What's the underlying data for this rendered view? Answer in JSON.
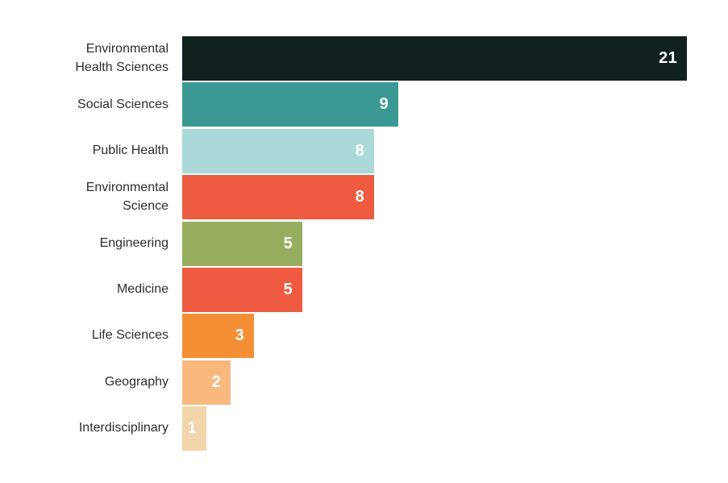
{
  "chart_data": {
    "type": "bar",
    "orientation": "horizontal",
    "title": "",
    "xlabel": "",
    "ylabel": "",
    "xlim": [
      0,
      21
    ],
    "grid": false,
    "legend": false,
    "value_label_color": "#ffffff",
    "label_color": "#2d2d2d",
    "background_color": "#ffffff",
    "categories": [
      "Environmental Health Sciences",
      "Social Sciences",
      "Public Health",
      "Environmental Science",
      "Engineering",
      "Medicine",
      "Life Sciences",
      "Geography",
      "Interdisciplinary"
    ],
    "values": [
      21,
      9,
      8,
      8,
      5,
      5,
      3,
      2,
      1
    ],
    "bars": [
      {
        "label": "Environmental Health Sciences",
        "lines": [
          "Environmental",
          "Health Sciences"
        ],
        "value": 21,
        "color": "#10211f"
      },
      {
        "label": "Social Sciences",
        "lines": [
          "Social Sciences"
        ],
        "value": 9,
        "color": "#3a9a93"
      },
      {
        "label": "Public Health",
        "lines": [
          "Public Health"
        ],
        "value": 8,
        "color": "#abd8d8"
      },
      {
        "label": "Environmental Science",
        "lines": [
          "Environmental",
          "Science"
        ],
        "value": 8,
        "color": "#ef5b40"
      },
      {
        "label": "Engineering",
        "lines": [
          "Engineering"
        ],
        "value": 5,
        "color": "#97ad60"
      },
      {
        "label": "Medicine",
        "lines": [
          "Medicine"
        ],
        "value": 5,
        "color": "#ef5b40"
      },
      {
        "label": "Life Sciences",
        "lines": [
          "Life Sciences"
        ],
        "value": 3,
        "color": "#f58f35"
      },
      {
        "label": "Geography",
        "lines": [
          "Geography"
        ],
        "value": 2,
        "color": "#f9b97e"
      },
      {
        "label": "Interdisciplinary",
        "lines": [
          "Interdisciplinary"
        ],
        "value": 1,
        "color": "#f2d5ab"
      }
    ]
  }
}
